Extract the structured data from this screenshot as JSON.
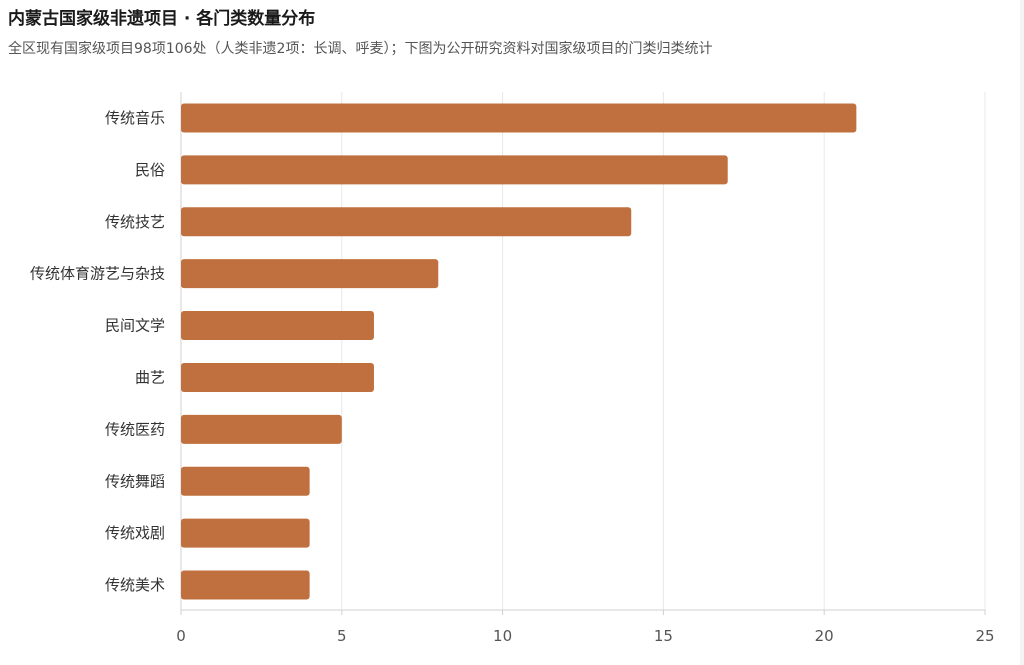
{
  "header": {
    "title": "内蒙古国家级非遗项目 · 各门类数量分布",
    "subtitle": "全区现有国家级项目98项106处（人类非遗2项：长调、呼麦）；下图为公开研究资料对国家级项目的门类归类统计"
  },
  "colors": {
    "bar": "#c0703e",
    "grid": "#e8e8e8",
    "axis": "#d0d0d0"
  },
  "chart_data": {
    "type": "bar",
    "orientation": "horizontal",
    "categories": [
      "传统音乐",
      "民俗",
      "传统技艺",
      "传统体育游艺与杂技",
      "民间文学",
      "曲艺",
      "传统医药",
      "传统舞蹈",
      "传统戏剧",
      "传统美术"
    ],
    "values": [
      21,
      17,
      14,
      8,
      6,
      6,
      5,
      4,
      4,
      4
    ],
    "xlim": [
      0,
      25
    ],
    "xticks": [
      0,
      5,
      10,
      15,
      20,
      25
    ],
    "grid": true,
    "legend": "none"
  }
}
